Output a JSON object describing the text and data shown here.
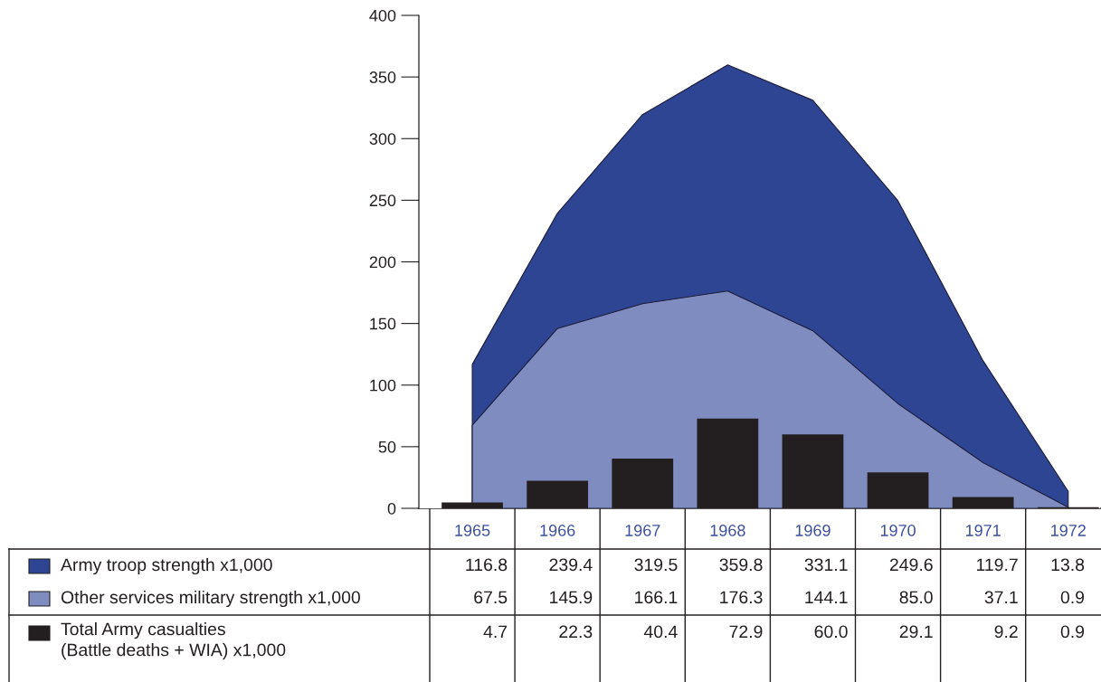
{
  "chart_data": {
    "type": "area",
    "categories": [
      "1965",
      "1966",
      "1967",
      "1968",
      "1969",
      "1970",
      "1971",
      "1972"
    ],
    "legend": "bottom left",
    "series": [
      {
        "name": "Army troop strength x1,000",
        "color": "#2e4593",
        "values": [
          116.8,
          239.4,
          319.5,
          359.8,
          331.1,
          249.6,
          119.7,
          13.8
        ],
        "value_labels": [
          "116.8",
          "239.4",
          "319.5",
          "359.8",
          "331.1",
          "249.6",
          "119.7",
          "13.8"
        ]
      },
      {
        "name": "Other services military strength x1,000",
        "color": "#7f8cc0",
        "values": [
          67.5,
          145.9,
          166.1,
          176.3,
          144.1,
          85.0,
          37.1,
          0.9
        ],
        "value_labels": [
          "67.5",
          "145.9",
          "166.1",
          "176.3",
          "144.1",
          "85.0",
          "37.1",
          "0.9"
        ]
      },
      {
        "name": "Total Army casualties\n(Battle deaths + WIA) x1,000",
        "type": "bar",
        "color": "#231f20",
        "values": [
          4.7,
          22.3,
          40.4,
          72.9,
          60.0,
          29.1,
          9.2,
          0.9
        ],
        "value_labels": [
          "4.7",
          "22.3",
          "40.4",
          "72.9",
          "60.0",
          "29.1",
          "9.2",
          "0.9"
        ]
      }
    ],
    "ylim": [
      0,
      400
    ],
    "yticks": [
      0,
      50,
      100,
      150,
      200,
      250,
      300,
      350,
      400
    ],
    "grid": false
  }
}
